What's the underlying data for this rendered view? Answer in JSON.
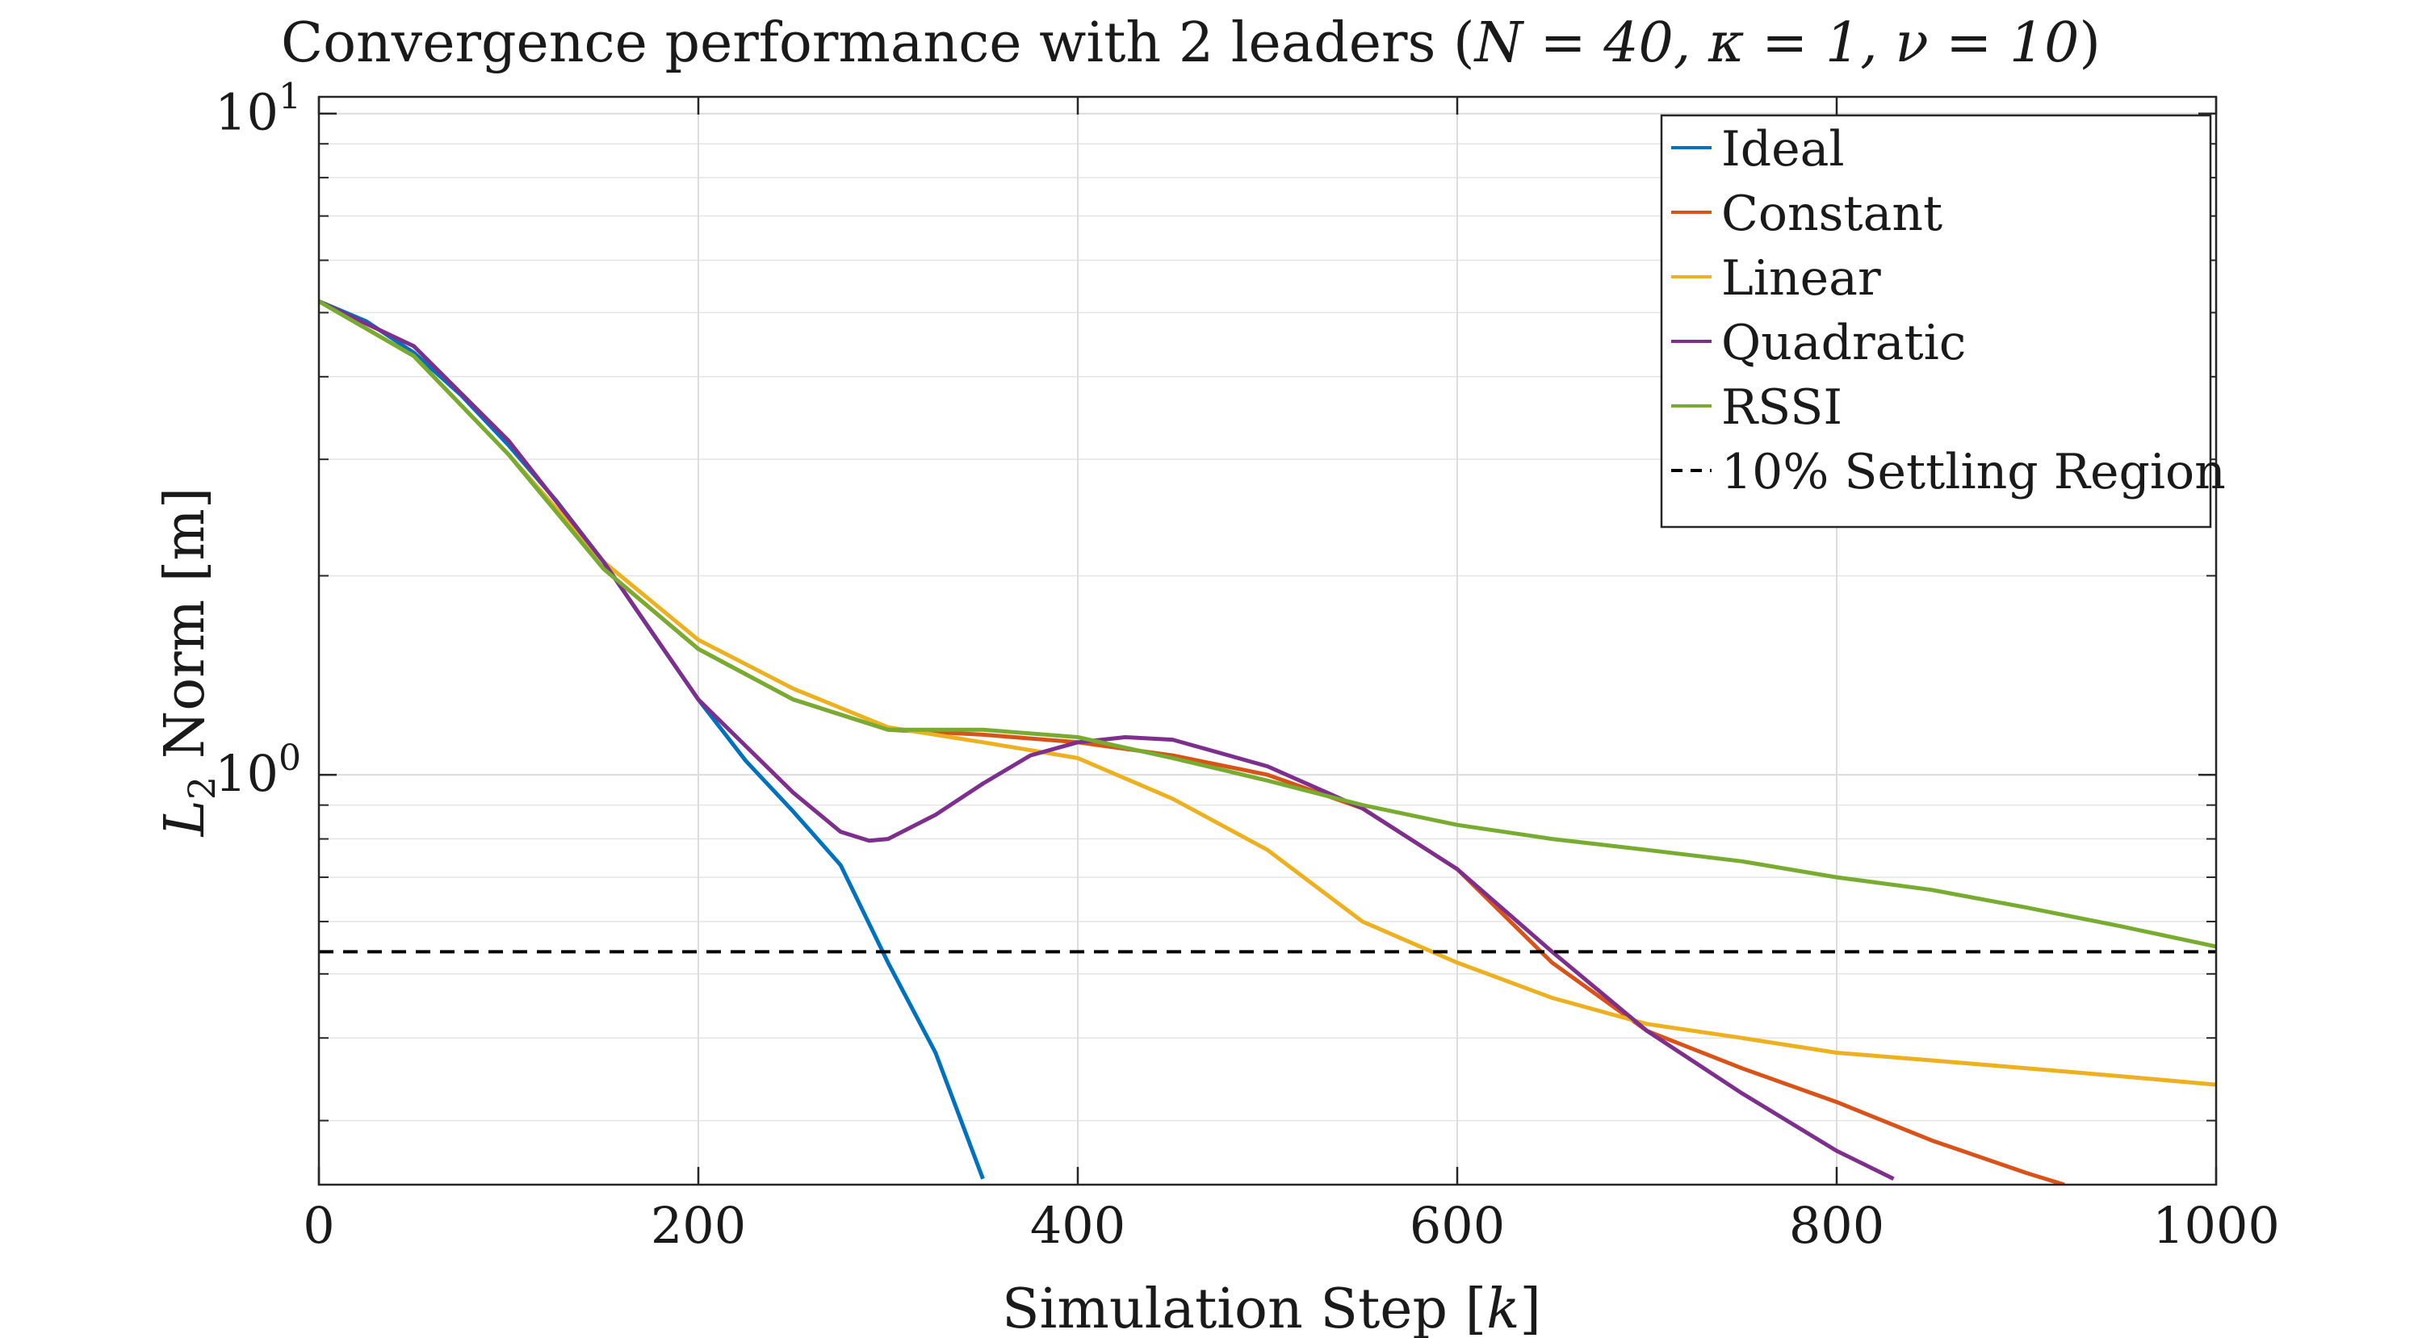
{
  "chart_data": {
    "type": "line",
    "title_text": "Convergence performance with 2 leaders (",
    "title_params": "N = 40, κ = 1, ν = 10",
    "title_close": ")",
    "xlabel_text": "Simulation Step [",
    "xlabel_var": "k",
    "xlabel_close": "]",
    "ylabel_var": "L",
    "ylabel_sub": "2",
    "ylabel_text": " Norm [m]",
    "xlim": [
      0,
      1000
    ],
    "ylim": [
      0.24,
      10.6
    ],
    "yscale": "log",
    "grid": true,
    "legend_position": "top-right",
    "x_ticks": [
      {
        "value": 0,
        "label": "0"
      },
      {
        "value": 200,
        "label": "200"
      },
      {
        "value": 400,
        "label": "400"
      },
      {
        "value": 600,
        "label": "600"
      },
      {
        "value": 800,
        "label": "800"
      },
      {
        "value": 1000,
        "label": "1000"
      }
    ],
    "y_ticks": [
      {
        "value": 1,
        "base": "10",
        "exp": "0"
      },
      {
        "value": 10,
        "base": "10",
        "exp": "1"
      }
    ],
    "settling_level": 0.54,
    "series": [
      {
        "name": "Ideal",
        "color": "#0072BD",
        "dash": "",
        "x": [
          0,
          25,
          50,
          75,
          100,
          125,
          150,
          175,
          200,
          225,
          250,
          275,
          300,
          325,
          350
        ],
        "y": [
          5.2,
          4.85,
          4.35,
          3.75,
          3.15,
          2.6,
          2.1,
          1.65,
          1.3,
          1.05,
          0.88,
          0.73,
          0.52,
          0.38,
          0.245
        ]
      },
      {
        "name": "Constant",
        "color": "#D95319",
        "dash": "",
        "x": [
          0,
          50,
          100,
          150,
          200,
          250,
          300,
          350,
          400,
          450,
          500,
          550,
          600,
          650,
          700,
          750,
          800,
          850,
          900,
          920
        ],
        "y": [
          5.2,
          4.3,
          3.05,
          2.05,
          1.55,
          1.3,
          1.17,
          1.15,
          1.12,
          1.07,
          1.0,
          0.89,
          0.72,
          0.52,
          0.41,
          0.36,
          0.32,
          0.28,
          0.25,
          0.24
        ]
      },
      {
        "name": "Linear",
        "color": "#EDB120",
        "dash": "",
        "x": [
          0,
          50,
          100,
          150,
          200,
          250,
          300,
          350,
          400,
          450,
          500,
          550,
          600,
          650,
          700,
          750,
          800,
          850,
          900,
          950,
          1000
        ],
        "y": [
          5.2,
          4.3,
          3.05,
          2.1,
          1.6,
          1.35,
          1.18,
          1.12,
          1.06,
          0.92,
          0.77,
          0.6,
          0.52,
          0.46,
          0.42,
          0.4,
          0.38,
          0.37,
          0.36,
          0.35,
          0.34
        ]
      },
      {
        "name": "Quadratic",
        "color": "#7E2F8E",
        "dash": "",
        "x": [
          0,
          50,
          100,
          150,
          200,
          250,
          275,
          290,
          300,
          325,
          350,
          375,
          400,
          425,
          450,
          500,
          550,
          600,
          650,
          700,
          750,
          800,
          830
        ],
        "y": [
          5.2,
          4.45,
          3.2,
          2.1,
          1.3,
          0.94,
          0.82,
          0.795,
          0.8,
          0.87,
          0.97,
          1.07,
          1.12,
          1.14,
          1.13,
          1.03,
          0.89,
          0.72,
          0.54,
          0.41,
          0.33,
          0.27,
          0.245
        ]
      },
      {
        "name": "RSSI",
        "color": "#77AC30",
        "dash": "",
        "x": [
          0,
          50,
          100,
          150,
          200,
          250,
          300,
          350,
          400,
          450,
          500,
          550,
          600,
          650,
          700,
          750,
          800,
          850,
          900,
          950,
          1000
        ],
        "y": [
          5.2,
          4.3,
          3.05,
          2.05,
          1.55,
          1.3,
          1.17,
          1.17,
          1.14,
          1.06,
          0.98,
          0.9,
          0.84,
          0.8,
          0.77,
          0.74,
          0.7,
          0.67,
          0.63,
          0.59,
          0.55
        ]
      },
      {
        "name": "10% Settling Region",
        "color": "#000000",
        "dash": "18,12",
        "x": [
          0,
          1000
        ],
        "y": [
          0.54,
          0.54
        ]
      }
    ]
  }
}
